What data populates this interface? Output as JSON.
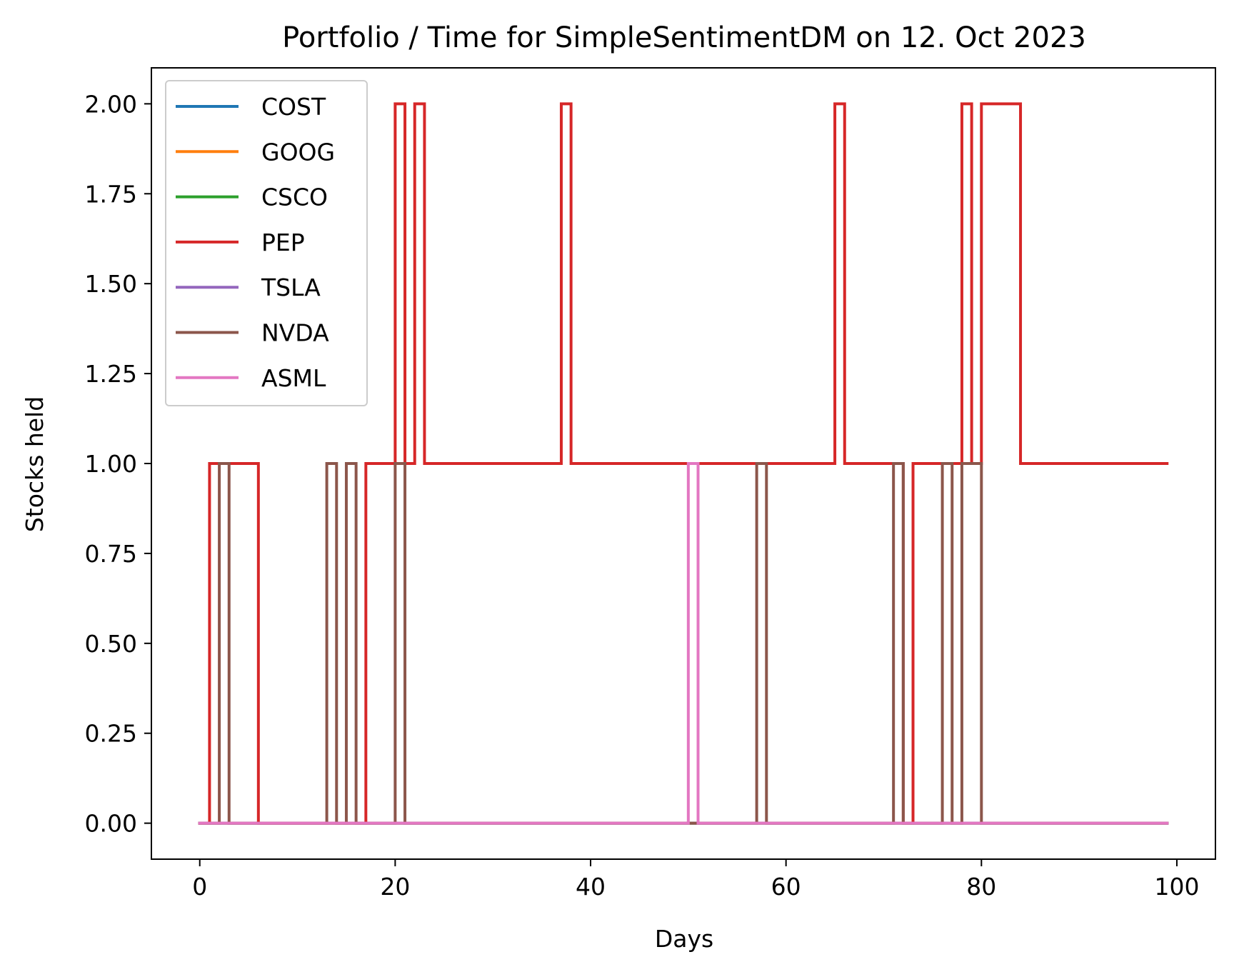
{
  "chart_data": {
    "type": "line",
    "step": "post",
    "title": "Portfolio / Time for SimpleSentimentDM on 12. Oct 2023",
    "xlabel": "Days",
    "ylabel": "Stocks held",
    "xlim": [
      -4.95,
      103.95
    ],
    "ylim": [
      -0.1,
      2.1
    ],
    "xticks": [
      0,
      20,
      40,
      60,
      80,
      100
    ],
    "yticks": [
      0,
      0.25,
      0.5,
      0.75,
      1,
      1.25,
      1.5,
      1.75,
      2
    ],
    "xtick_labels": [
      "0",
      "20",
      "40",
      "60",
      "80",
      "100"
    ],
    "ytick_labels": [
      "0.00",
      "0.25",
      "0.50",
      "0.75",
      "1.00",
      "1.25",
      "1.50",
      "1.75",
      "2.00"
    ],
    "grid": false,
    "legend_position": "top-left",
    "series": [
      {
        "name": "COST",
        "color": "#1f77b4",
        "x": [
          0,
          99
        ],
        "y": [
          0,
          0
        ]
      },
      {
        "name": "GOOG",
        "color": "#ff7f0e",
        "x": [
          0,
          99
        ],
        "y": [
          0,
          0
        ]
      },
      {
        "name": "CSCO",
        "color": "#2ca02c",
        "x": [
          0,
          99
        ],
        "y": [
          0,
          0
        ]
      },
      {
        "name": "PEP",
        "color": "#d62728",
        "x": [
          0,
          1,
          6,
          17,
          20,
          21,
          22,
          23,
          37,
          38,
          65,
          66,
          72,
          73,
          78,
          79,
          80,
          84,
          99
        ],
        "y": [
          0,
          1,
          0,
          1,
          2,
          1,
          2,
          1,
          2,
          1,
          2,
          1,
          0,
          1,
          2,
          1,
          2,
          1,
          1
        ]
      },
      {
        "name": "TSLA",
        "color": "#9467bd",
        "x": [
          0,
          99
        ],
        "y": [
          0,
          0
        ]
      },
      {
        "name": "NVDA",
        "color": "#8c564b",
        "x": [
          0,
          2,
          3,
          13,
          14,
          15,
          16,
          20,
          21,
          57,
          58,
          71,
          72,
          76,
          77,
          78,
          80,
          99
        ],
        "y": [
          0,
          1,
          0,
          1,
          0,
          1,
          0,
          1,
          0,
          1,
          0,
          1,
          0,
          1,
          0,
          1,
          0,
          0
        ]
      },
      {
        "name": "ASML",
        "color": "#e377c2",
        "x": [
          0,
          50,
          51,
          99
        ],
        "y": [
          0,
          1,
          0,
          0
        ]
      }
    ]
  }
}
